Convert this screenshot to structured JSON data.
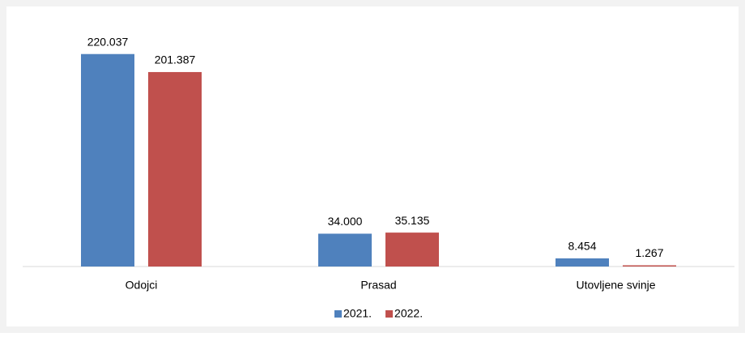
{
  "chart_data": {
    "type": "bar",
    "categories": [
      "Odojci",
      "Prasad",
      "Utovljene svinje"
    ],
    "series": [
      {
        "name": "2021.",
        "color": "#4f81bd",
        "values": [
          220037,
          34000,
          8454
        ],
        "value_labels": [
          "220.037",
          "34.000",
          "8.454"
        ]
      },
      {
        "name": "2022.",
        "color": "#c0504d",
        "values": [
          201387,
          35135,
          1267
        ],
        "value_labels": [
          "201.387",
          "35.135",
          "1.267"
        ]
      }
    ],
    "ylim": [
      0,
      250000
    ],
    "legend": "bottom"
  }
}
